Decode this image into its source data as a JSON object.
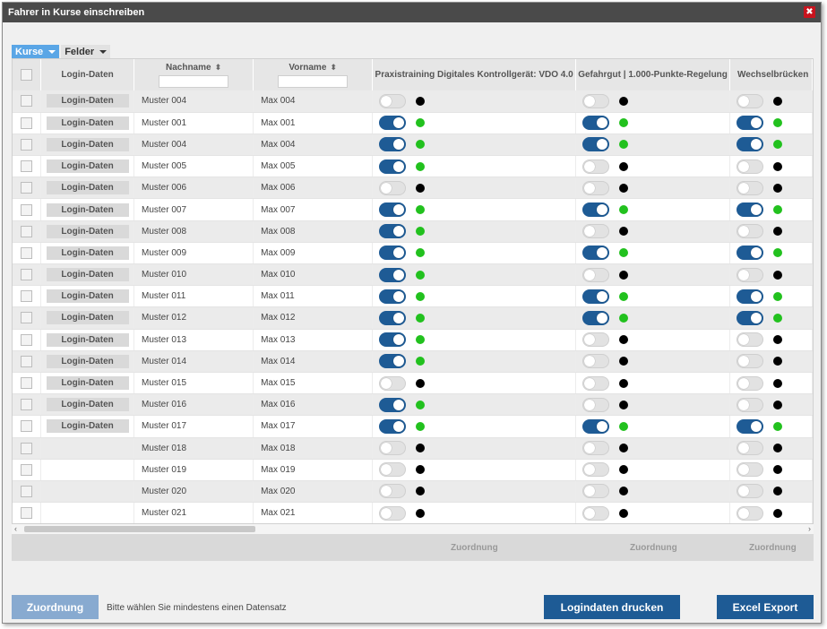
{
  "window": {
    "title": "Fahrer in Kurse einschreiben",
    "close": "✖"
  },
  "tabs": [
    {
      "label": "Kurse"
    },
    {
      "label": "Felder"
    }
  ],
  "columns": {
    "login": "Login-Daten",
    "nachname": "Nachname",
    "vorname": "Vorname",
    "course1": "Praxistraining Digitales Kontrollgerät: VDO 4.0",
    "course2": "Gefahrgut | 1.000-Punkte-Regelung",
    "course3": "Wechselbrücken"
  },
  "sort_icon": "⬍",
  "rows": [
    {
      "login": "Login-Daten",
      "nachname": "Muster 004",
      "vorname": "Max 004",
      "c1": false,
      "c2": false,
      "c3": false
    },
    {
      "login": "Login-Daten",
      "nachname": "Muster 001",
      "vorname": "Max 001",
      "c1": true,
      "c2": true,
      "c3": true
    },
    {
      "login": "Login-Daten",
      "nachname": "Muster 004",
      "vorname": "Max 004",
      "c1": true,
      "c2": true,
      "c3": true
    },
    {
      "login": "Login-Daten",
      "nachname": "Muster 005",
      "vorname": "Max 005",
      "c1": true,
      "c2": false,
      "c3": false
    },
    {
      "login": "Login-Daten",
      "nachname": "Muster 006",
      "vorname": "Max 006",
      "c1": false,
      "c2": false,
      "c3": false
    },
    {
      "login": "Login-Daten",
      "nachname": "Muster 007",
      "vorname": "Max 007",
      "c1": true,
      "c2": true,
      "c3": true
    },
    {
      "login": "Login-Daten",
      "nachname": "Muster 008",
      "vorname": "Max 008",
      "c1": true,
      "c2": false,
      "c3": false
    },
    {
      "login": "Login-Daten",
      "nachname": "Muster 009",
      "vorname": "Max 009",
      "c1": true,
      "c2": true,
      "c3": true
    },
    {
      "login": "Login-Daten",
      "nachname": "Muster 010",
      "vorname": "Max 010",
      "c1": true,
      "c2": false,
      "c3": false
    },
    {
      "login": "Login-Daten",
      "nachname": "Muster 011",
      "vorname": "Max 011",
      "c1": true,
      "c2": true,
      "c3": true
    },
    {
      "login": "Login-Daten",
      "nachname": "Muster 012",
      "vorname": "Max 012",
      "c1": true,
      "c2": true,
      "c3": true
    },
    {
      "login": "Login-Daten",
      "nachname": "Muster 013",
      "vorname": "Max 013",
      "c1": true,
      "c2": false,
      "c3": false
    },
    {
      "login": "Login-Daten",
      "nachname": "Muster 014",
      "vorname": "Max 014",
      "c1": true,
      "c2": false,
      "c3": false
    },
    {
      "login": "Login-Daten",
      "nachname": "Muster 015",
      "vorname": "Max 015",
      "c1": false,
      "c2": false,
      "c3": false
    },
    {
      "login": "Login-Daten",
      "nachname": "Muster 016",
      "vorname": "Max 016",
      "c1": true,
      "c2": false,
      "c3": false
    },
    {
      "login": "Login-Daten",
      "nachname": "Muster 017",
      "vorname": "Max 017",
      "c1": true,
      "c2": true,
      "c3": true
    },
    {
      "login": "",
      "nachname": "Muster 018",
      "vorname": "Max 018",
      "c1": false,
      "c2": false,
      "c3": false
    },
    {
      "login": "",
      "nachname": "Muster 019",
      "vorname": "Max 019",
      "c1": false,
      "c2": false,
      "c3": false
    },
    {
      "login": "",
      "nachname": "Muster 020",
      "vorname": "Max 020",
      "c1": false,
      "c2": false,
      "c3": false
    },
    {
      "login": "",
      "nachname": "Muster 021",
      "vorname": "Max 021",
      "c1": false,
      "c2": false,
      "c3": false
    }
  ],
  "footer": {
    "zuordnung1": "Zuordnung",
    "zuordnung2": "Zuordnung",
    "zuordnung3": "Zuordnung"
  },
  "scroll": {
    "left": "‹",
    "right": "›"
  },
  "actions": {
    "zuordnung": "Zuordnung",
    "hint": "Bitte wählen Sie mindestens einen Datensatz",
    "print": "Logindaten drucken",
    "export": "Excel Export"
  },
  "colors": {
    "accent": "#1e5b95",
    "active_dot": "#22c11e",
    "tab_active": "#5aa6e6",
    "close": "#c8141e"
  }
}
